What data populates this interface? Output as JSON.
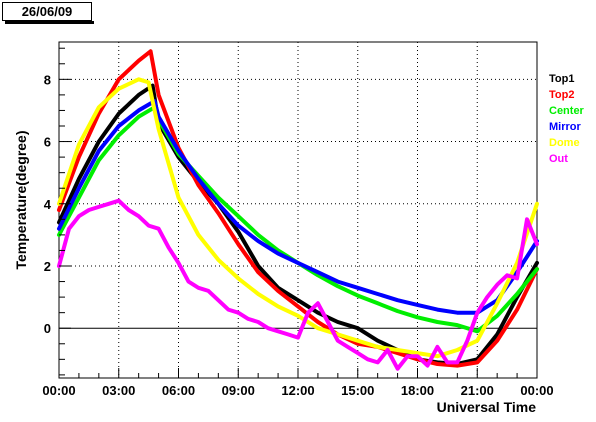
{
  "header": {
    "date_label": "26/06/09"
  },
  "chart_data": {
    "type": "scatter",
    "title": "",
    "xlabel": "Universal Time",
    "ylabel": "Temperature(degree)",
    "xlim": [
      0,
      24
    ],
    "ylim": [
      -1.6,
      9.2
    ],
    "grid": true,
    "legend_position": "right",
    "x_ticks": [
      0,
      3,
      6,
      9,
      12,
      15,
      18,
      21,
      24
    ],
    "x_tick_labels": [
      "00:00",
      "03:00",
      "06:00",
      "09:00",
      "12:00",
      "15:00",
      "18:00",
      "21:00",
      "00:00"
    ],
    "y_ticks": [
      0,
      2,
      4,
      6,
      8
    ],
    "y_tick_labels": [
      "0",
      "2",
      "4",
      "6",
      "8"
    ],
    "series": [
      {
        "name": "Top1",
        "color": "#000000",
        "x": [
          0,
          1,
          2,
          3,
          4,
          4.7,
          5,
          6,
          7,
          8,
          9,
          10,
          11,
          12,
          13,
          14,
          15,
          16,
          17,
          18,
          19,
          20,
          21,
          22,
          23,
          24
        ],
        "y": [
          3.4,
          4.8,
          6.0,
          6.9,
          7.5,
          7.8,
          6.6,
          5.5,
          4.7,
          4.0,
          3.1,
          2.0,
          1.3,
          0.9,
          0.5,
          0.2,
          0.0,
          -0.4,
          -0.7,
          -1.0,
          -1.1,
          -1.15,
          -1.0,
          -0.2,
          1.0,
          2.1
        ]
      },
      {
        "name": "Top2",
        "color": "#ff0000",
        "x": [
          0,
          1,
          2,
          3,
          4,
          4.6,
          5,
          6,
          7,
          8,
          9,
          10,
          11,
          12,
          13,
          14,
          15,
          16,
          17,
          18,
          19,
          20,
          21,
          22,
          23,
          24
        ],
        "y": [
          3.8,
          5.5,
          6.9,
          8.0,
          8.6,
          8.9,
          7.5,
          5.8,
          4.6,
          3.7,
          2.7,
          1.8,
          1.2,
          0.7,
          0.2,
          -0.2,
          -0.5,
          -0.6,
          -0.8,
          -1.0,
          -1.15,
          -1.2,
          -1.1,
          -0.4,
          0.6,
          1.9
        ]
      },
      {
        "name": "Center",
        "color": "#00ee00",
        "x": [
          0,
          1,
          2,
          3,
          4,
          4.8,
          5,
          6,
          7,
          8,
          9,
          10,
          11,
          12,
          13,
          14,
          15,
          16,
          17,
          18,
          19,
          20,
          21,
          22,
          23,
          24
        ],
        "y": [
          3.0,
          4.2,
          5.4,
          6.2,
          6.8,
          7.1,
          6.7,
          5.6,
          4.9,
          4.2,
          3.6,
          3.0,
          2.5,
          2.1,
          1.7,
          1.35,
          1.05,
          0.8,
          0.55,
          0.35,
          0.2,
          0.1,
          -0.1,
          0.4,
          1.1,
          1.9
        ]
      },
      {
        "name": "Mirror",
        "color": "#0000ff",
        "x": [
          0,
          1,
          2,
          3,
          4,
          4.8,
          5,
          6,
          7,
          8,
          9,
          10,
          11,
          12,
          13,
          14,
          15,
          16,
          17,
          18,
          19,
          20,
          21,
          22,
          23,
          24
        ],
        "y": [
          3.2,
          4.5,
          5.7,
          6.5,
          7.0,
          7.3,
          6.8,
          5.7,
          4.8,
          4.0,
          3.3,
          2.8,
          2.4,
          2.1,
          1.8,
          1.5,
          1.3,
          1.1,
          0.9,
          0.75,
          0.6,
          0.5,
          0.5,
          0.9,
          1.8,
          2.8
        ]
      },
      {
        "name": "Dome",
        "color": "#ffff00",
        "x": [
          0,
          1,
          2,
          3,
          4,
          4.5,
          5,
          6,
          7,
          8,
          9,
          10,
          11,
          12,
          13,
          14,
          15,
          16,
          17,
          18,
          19,
          20,
          21,
          22,
          23,
          24
        ],
        "y": [
          4.0,
          5.9,
          7.1,
          7.7,
          8.0,
          7.9,
          6.4,
          4.2,
          3.0,
          2.2,
          1.6,
          1.1,
          0.7,
          0.4,
          0.0,
          -0.2,
          -0.4,
          -0.6,
          -0.7,
          -0.8,
          -0.9,
          -0.7,
          -0.4,
          0.8,
          2.1,
          4.0
        ]
      },
      {
        "name": "Out",
        "color": "#ff00ff",
        "x": [
          0,
          0.5,
          1,
          1.5,
          2,
          2.5,
          3,
          3.5,
          4,
          4.5,
          5,
          5.5,
          6,
          6.5,
          7,
          7.5,
          8,
          8.5,
          9,
          9.5,
          10,
          10.5,
          11,
          11.5,
          12,
          12.5,
          13,
          13.5,
          14,
          14.5,
          15,
          15.5,
          16,
          16.5,
          17,
          17.5,
          18,
          18.5,
          19,
          19.5,
          20,
          20.5,
          21,
          21.5,
          22,
          22.5,
          23,
          23.5,
          24
        ],
        "y": [
          2.0,
          3.2,
          3.6,
          3.8,
          3.9,
          4.0,
          4.1,
          3.8,
          3.6,
          3.3,
          3.2,
          2.6,
          2.1,
          1.5,
          1.3,
          1.2,
          0.9,
          0.6,
          0.5,
          0.3,
          0.2,
          0.0,
          -0.1,
          -0.2,
          -0.3,
          0.5,
          0.8,
          0.2,
          -0.4,
          -0.6,
          -0.8,
          -1.0,
          -1.1,
          -0.7,
          -1.3,
          -0.9,
          -0.9,
          -1.2,
          -0.6,
          -1.1,
          -1.1,
          -0.4,
          0.5,
          1.0,
          1.4,
          1.7,
          1.6,
          3.5,
          2.7
        ]
      }
    ]
  }
}
